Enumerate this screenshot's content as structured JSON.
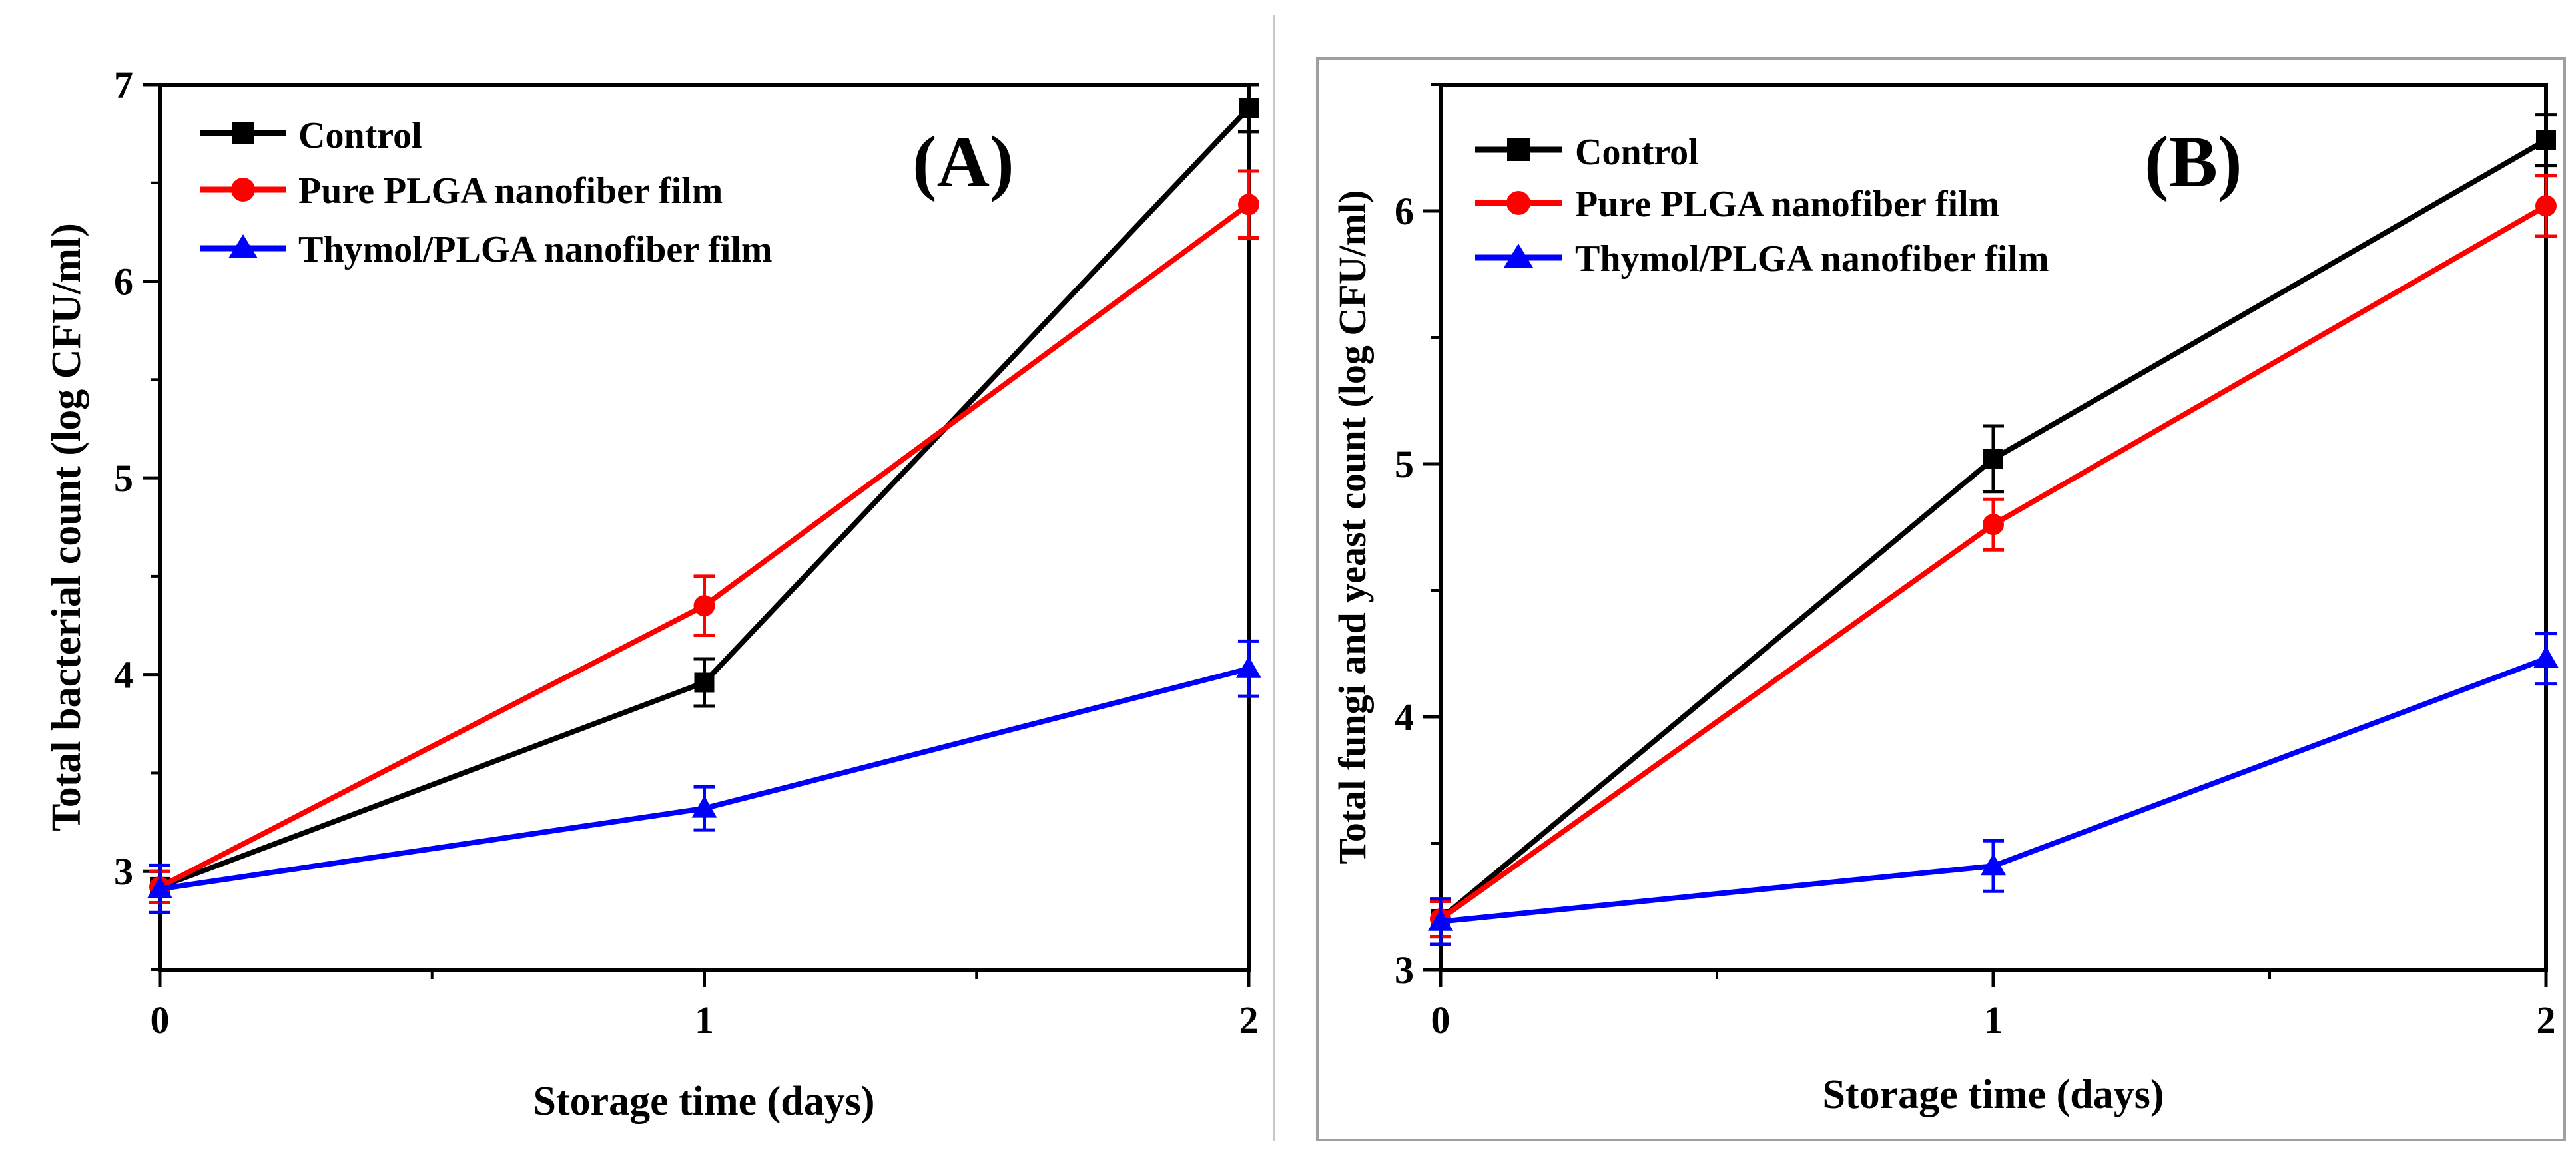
{
  "colors": {
    "control": "#000000",
    "pure_plga": "#ff0000",
    "thymol_plga": "#0000ff",
    "axis": "#000000",
    "divider": "#c8c8c8",
    "frame_b": "#a0a0a0"
  },
  "chart_data": [
    {
      "type": "line",
      "panel_label": "(A)",
      "xlabel": "Storage time (days)",
      "ylabel": "Total bacterial count (log CFU/ml)",
      "x": [
        0,
        1,
        2
      ],
      "x_ticks": [
        "0",
        "1",
        "2"
      ],
      "y_ticks": [
        "3",
        "4",
        "5",
        "6",
        "7"
      ],
      "xlim": [
        0,
        2
      ],
      "ylim": [
        2.5,
        7
      ],
      "legend_position": "top-left",
      "series": [
        {
          "name": "Control",
          "color": "#000000",
          "marker": "square",
          "values": [
            2.92,
            3.96,
            6.88
          ],
          "errors": [
            0.08,
            0.12,
            0.12
          ]
        },
        {
          "name": "Pure PLGA nanofiber film",
          "color": "#ff0000",
          "marker": "circle",
          "values": [
            2.92,
            4.35,
            6.39
          ],
          "errors": [
            0.08,
            0.15,
            0.17
          ]
        },
        {
          "name": "Thymol/PLGA nanofiber film",
          "color": "#0000ff",
          "marker": "triangle",
          "values": [
            2.91,
            3.32,
            4.03
          ],
          "errors": [
            0.12,
            0.11,
            0.14
          ]
        }
      ]
    },
    {
      "type": "line",
      "panel_label": "(B)",
      "xlabel": "Storage time (days)",
      "ylabel": "Total fungi and yeast count (log CFU/ml)",
      "x": [
        0,
        1,
        2
      ],
      "x_ticks": [
        "0",
        "1",
        "2"
      ],
      "y_ticks": [
        "3",
        "4",
        "5",
        "6"
      ],
      "xlim": [
        0,
        2
      ],
      "ylim": [
        3,
        6.5
      ],
      "legend_position": "top-left",
      "series": [
        {
          "name": "Control",
          "color": "#000000",
          "marker": "square",
          "values": [
            3.2,
            5.02,
            6.28
          ],
          "errors": [
            0.07,
            0.13,
            0.1
          ]
        },
        {
          "name": "Pure PLGA nanofiber film",
          "color": "#ff0000",
          "marker": "circle",
          "values": [
            3.2,
            4.76,
            6.02
          ],
          "errors": [
            0.07,
            0.1,
            0.12
          ]
        },
        {
          "name": "Thymol/PLGA nanofiber film",
          "color": "#0000ff",
          "marker": "triangle",
          "values": [
            3.19,
            3.41,
            4.23
          ],
          "errors": [
            0.09,
            0.1,
            0.1
          ]
        }
      ]
    }
  ]
}
